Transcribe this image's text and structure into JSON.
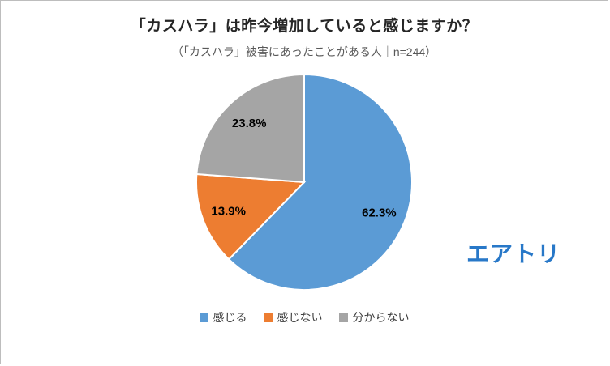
{
  "chart_data": {
    "type": "pie",
    "title": "「カスハラ」は昨今増加していると感じますか？",
    "subtitle": "（「カスハラ」被害にあったことがある人｜n=244）",
    "labels": [
      "感じる",
      "感じない",
      "分からない"
    ],
    "values": [
      62.3,
      13.9,
      23.8
    ],
    "value_labels": [
      "62.3%",
      "13.9%",
      "23.8%"
    ],
    "colors": [
      "#5B9BD5",
      "#ED7D31",
      "#A5A5A5"
    ],
    "start_angle_deg": 0,
    "direction": "clockwise",
    "legend_position": "bottom",
    "slice_border_color": "#FFFFFF"
  },
  "logo": {
    "text": "エアトリ",
    "color": "#2878C8"
  }
}
